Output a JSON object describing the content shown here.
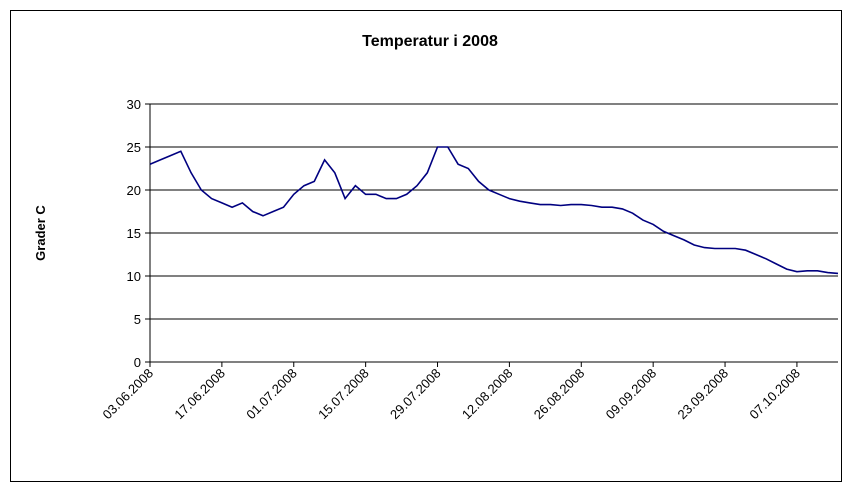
{
  "chart_data": {
    "type": "line",
    "title": "Temperatur i 2008",
    "y_label": "Grader C",
    "categories": [
      "03.06.2008",
      null,
      null,
      null,
      null,
      null,
      null,
      "17.06.2008",
      null,
      null,
      null,
      null,
      null,
      null,
      "01.07.2008",
      null,
      null,
      null,
      null,
      null,
      null,
      "15.07.2008",
      null,
      null,
      null,
      null,
      null,
      null,
      "29.07.2008",
      null,
      null,
      null,
      null,
      null,
      null,
      "12.08.2008",
      null,
      null,
      null,
      null,
      null,
      null,
      "26.08.2008",
      null,
      null,
      null,
      null,
      null,
      null,
      "09.09.2008",
      null,
      null,
      null,
      null,
      null,
      null,
      "23.09.2008",
      null,
      null,
      null,
      null,
      null,
      null,
      "07.10.2008",
      null,
      null,
      null,
      null
    ],
    "values": [
      23,
      23.5,
      24,
      24.5,
      22,
      20,
      19,
      18.5,
      18,
      18.5,
      17.5,
      17,
      17.5,
      18,
      19.5,
      20.5,
      21,
      23.5,
      22,
      19,
      20.5,
      19.5,
      19.5,
      19,
      19,
      19.5,
      20.5,
      22,
      25,
      25,
      23,
      22.5,
      21,
      20,
      19.5,
      19,
      18.7,
      18.5,
      18.3,
      18.3,
      18.2,
      18.3,
      18.3,
      18.2,
      18,
      18,
      17.8,
      17.3,
      16.5,
      16,
      15.2,
      14.7,
      14.2,
      13.6,
      13.3,
      13.2,
      13.2,
      13.2,
      13,
      12.5,
      12,
      11.4,
      10.8,
      10.5,
      10.6,
      10.6,
      10.4,
      10.3
    ],
    "color": "#000080",
    "ylim": [
      0,
      30
    ],
    "yticks": [
      0,
      5,
      10,
      15,
      20,
      25,
      30
    ],
    "grid": true
  }
}
